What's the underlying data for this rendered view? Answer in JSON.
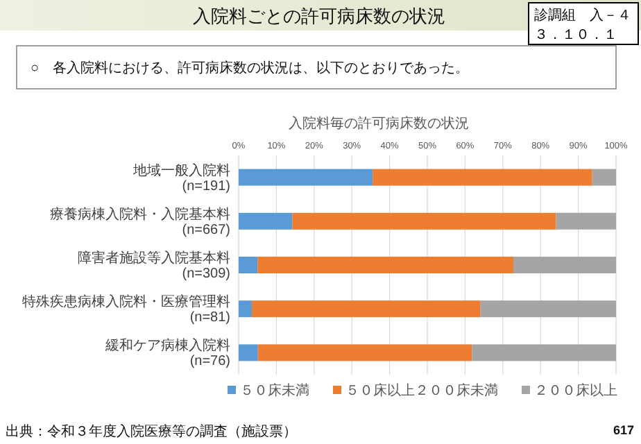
{
  "chart_data": {
    "type": "bar",
    "orientation": "horizontal",
    "stacked": true,
    "title": "入院料毎の許可病床数の状況",
    "categories": [
      "地域一般入院料(n=191)",
      "療養病棟入院料・入院基本料(n=667)",
      "障害者施設等入院基本料(n=309)",
      "特殊疾患病棟入院料・医療管理料(n=81)",
      "緩和ケア病棟入院料(n=76)"
    ],
    "series": [
      {
        "name": "５０床未満",
        "color": "#5b9bd5",
        "values": [
          35.5,
          14.2,
          5.0,
          3.5,
          5.1
        ]
      },
      {
        "name": "５０床以上２００床未満",
        "color": "#ed7d31",
        "values": [
          58.2,
          69.9,
          67.8,
          60.6,
          56.7
        ]
      },
      {
        "name": "２００床以上",
        "color": "#a5a5a5",
        "values": [
          6.3,
          15.9,
          27.2,
          35.9,
          38.2
        ]
      }
    ],
    "xlim": [
      0,
      100
    ],
    "xticks": [
      {
        "value": 0,
        "label": "0%"
      },
      {
        "value": 10,
        "label": "10%"
      },
      {
        "value": 20,
        "label": "20%"
      },
      {
        "value": 30,
        "label": "30%"
      },
      {
        "value": 40,
        "label": "40%"
      },
      {
        "value": 50,
        "label": "50%"
      },
      {
        "value": 60,
        "label": "60%"
      },
      {
        "value": 70,
        "label": "70%"
      },
      {
        "value": 80,
        "label": "80%"
      },
      {
        "value": 90,
        "label": "90%"
      },
      {
        "value": 100,
        "label": "100%"
      }
    ],
    "grid": "x",
    "legend": "bottom",
    "annotations": [
      "入院料ごとの許可病床数の状況",
      "診調組　入－４",
      "３．１０．１",
      "○　各入院料における、許可病床数の状況は、以下のとおりであった。",
      "出典：令和３年度入院医療等の調査（施設票）",
      "617"
    ]
  }
}
